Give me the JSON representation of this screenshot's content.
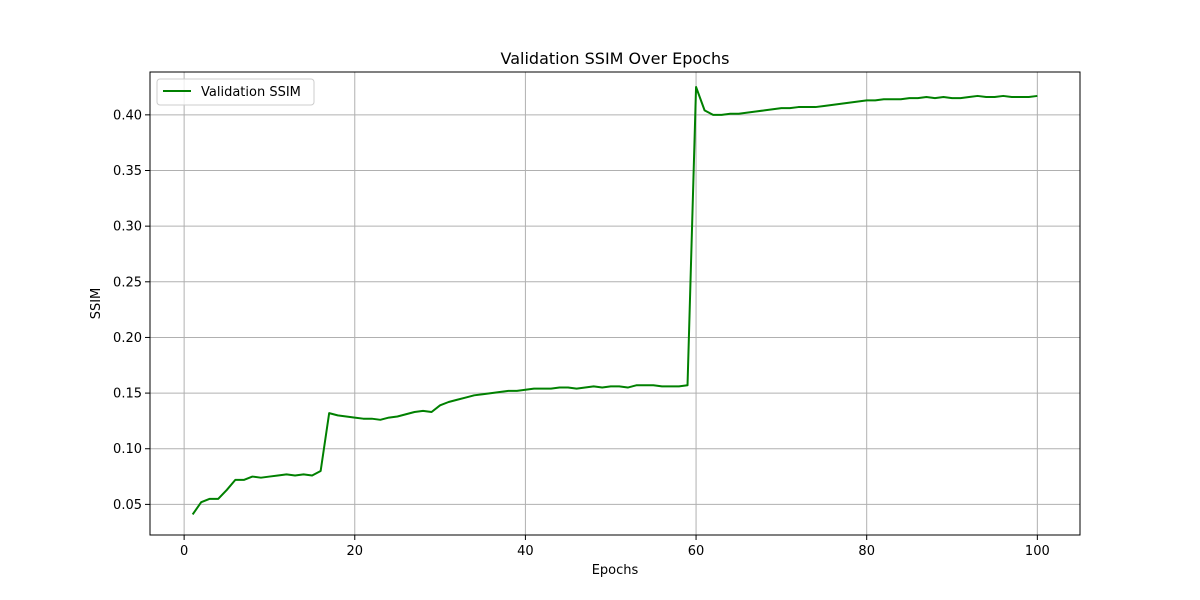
{
  "chart_data": {
    "type": "line",
    "title": "Validation SSIM Over Epochs",
    "xlabel": "Epochs",
    "ylabel": "SSIM",
    "xlim": [
      -4,
      105
    ],
    "ylim": [
      0.0225,
      0.4385
    ],
    "xticks": [
      0,
      20,
      40,
      60,
      80,
      100
    ],
    "yticks": [
      0.05,
      0.1,
      0.15,
      0.2,
      0.25,
      0.3,
      0.35,
      0.4
    ],
    "ytick_labels": [
      "0.05",
      "0.10",
      "0.15",
      "0.20",
      "0.25",
      "0.30",
      "0.35",
      "0.40"
    ],
    "grid": true,
    "legend": {
      "position": "upper-left",
      "entries": [
        "Validation SSIM"
      ]
    },
    "series": [
      {
        "name": "Validation SSIM",
        "color": "#008000",
        "x": [
          1,
          2,
          3,
          4,
          5,
          6,
          7,
          8,
          9,
          10,
          11,
          12,
          13,
          14,
          15,
          16,
          17,
          18,
          19,
          20,
          21,
          22,
          23,
          24,
          25,
          26,
          27,
          28,
          29,
          30,
          31,
          32,
          33,
          34,
          35,
          36,
          37,
          38,
          39,
          40,
          41,
          42,
          43,
          44,
          45,
          46,
          47,
          48,
          49,
          50,
          51,
          52,
          53,
          54,
          55,
          56,
          57,
          58,
          59,
          60,
          61,
          62,
          63,
          64,
          65,
          66,
          67,
          68,
          69,
          70,
          71,
          72,
          73,
          74,
          75,
          76,
          77,
          78,
          79,
          80,
          81,
          82,
          83,
          84,
          85,
          86,
          87,
          88,
          89,
          90,
          91,
          92,
          93,
          94,
          95,
          96,
          97,
          98,
          99,
          100
        ],
        "values": [
          0.041,
          0.052,
          0.055,
          0.055,
          0.063,
          0.072,
          0.072,
          0.075,
          0.074,
          0.075,
          0.076,
          0.077,
          0.076,
          0.077,
          0.076,
          0.08,
          0.132,
          0.13,
          0.129,
          0.128,
          0.127,
          0.127,
          0.126,
          0.128,
          0.129,
          0.131,
          0.133,
          0.134,
          0.133,
          0.139,
          0.142,
          0.144,
          0.146,
          0.148,
          0.149,
          0.15,
          0.151,
          0.152,
          0.152,
          0.153,
          0.154,
          0.154,
          0.154,
          0.155,
          0.155,
          0.154,
          0.155,
          0.156,
          0.155,
          0.156,
          0.156,
          0.155,
          0.157,
          0.157,
          0.157,
          0.156,
          0.156,
          0.156,
          0.157,
          0.425,
          0.404,
          0.4,
          0.4,
          0.401,
          0.401,
          0.402,
          0.403,
          0.404,
          0.405,
          0.406,
          0.406,
          0.407,
          0.407,
          0.407,
          0.408,
          0.409,
          0.41,
          0.411,
          0.412,
          0.413,
          0.413,
          0.414,
          0.414,
          0.414,
          0.415,
          0.415,
          0.416,
          0.415,
          0.416,
          0.415,
          0.415,
          0.416,
          0.417,
          0.416,
          0.416,
          0.417,
          0.416,
          0.416,
          0.416,
          0.417
        ]
      }
    ]
  }
}
